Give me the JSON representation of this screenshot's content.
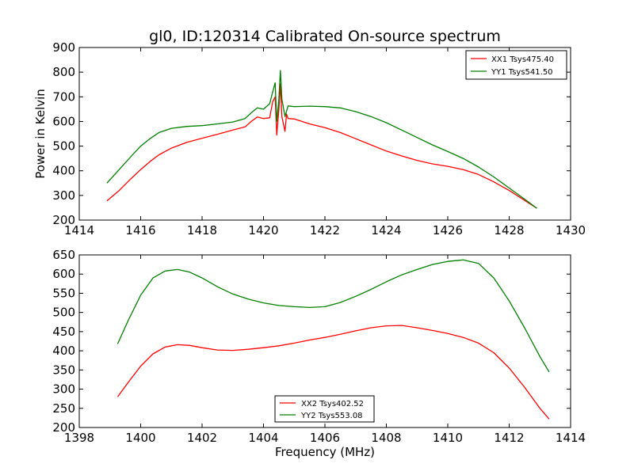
{
  "chart_data": [
    {
      "type": "line",
      "title": "gl0, ID:120314 Calibrated On-source spectrum",
      "xlabel": "",
      "ylabel": "Power in Kelvin",
      "xlim": [
        1414,
        1430
      ],
      "ylim": [
        200,
        900
      ],
      "xticks": [
        "1414",
        "1416",
        "1418",
        "1420",
        "1422",
        "1424",
        "1426",
        "1428",
        "1430"
      ],
      "yticks": [
        "200",
        "300",
        "400",
        "500",
        "600",
        "700",
        "800",
        "900"
      ],
      "legend": "top-right",
      "series": [
        {
          "name": "XX1 Tsys475.40",
          "color": "#ff0000",
          "x": [
            1414.9,
            1415.3,
            1415.7,
            1416.0,
            1416.3,
            1416.6,
            1417.0,
            1417.5,
            1418.0,
            1418.5,
            1419.0,
            1419.4,
            1419.6,
            1419.8,
            1420.0,
            1420.2,
            1420.3,
            1420.38,
            1420.43,
            1420.5,
            1420.55,
            1420.6,
            1420.7,
            1420.75,
            1420.8,
            1421.0,
            1421.5,
            1422.0,
            1422.5,
            1423.0,
            1423.5,
            1424.0,
            1424.5,
            1425.0,
            1425.5,
            1426.0,
            1426.5,
            1427.0,
            1427.5,
            1428.0,
            1428.5,
            1428.9
          ],
          "y": [
            278,
            320,
            370,
            405,
            437,
            465,
            492,
            515,
            532,
            548,
            565,
            578,
            600,
            618,
            612,
            615,
            680,
            700,
            545,
            650,
            752,
            620,
            560,
            630,
            612,
            610,
            590,
            575,
            555,
            530,
            505,
            480,
            460,
            442,
            428,
            418,
            405,
            385,
            355,
            320,
            280,
            248
          ]
        },
        {
          "name": "YY1 Tsys541.50",
          "color": "#008000",
          "x": [
            1414.9,
            1415.3,
            1415.7,
            1416.0,
            1416.3,
            1416.6,
            1417.0,
            1417.5,
            1418.0,
            1418.5,
            1419.0,
            1419.4,
            1419.6,
            1419.8,
            1420.0,
            1420.2,
            1420.3,
            1420.38,
            1420.43,
            1420.5,
            1420.55,
            1420.6,
            1420.7,
            1420.8,
            1421.0,
            1421.5,
            1422.0,
            1422.5,
            1423.0,
            1423.5,
            1424.0,
            1424.5,
            1425.0,
            1425.5,
            1426.0,
            1426.5,
            1427.0,
            1427.5,
            1428.0,
            1428.5,
            1428.9
          ],
          "y": [
            350,
            405,
            460,
            500,
            530,
            555,
            572,
            580,
            583,
            590,
            598,
            612,
            635,
            655,
            650,
            672,
            720,
            757,
            600,
            690,
            807,
            690,
            620,
            663,
            660,
            662,
            660,
            655,
            640,
            620,
            595,
            565,
            535,
            505,
            478,
            450,
            415,
            375,
            330,
            285,
            248
          ]
        }
      ]
    },
    {
      "type": "line",
      "title": "",
      "xlabel": "Frequency (MHz)",
      "ylabel": "",
      "xlim": [
        1398,
        1414
      ],
      "ylim": [
        200,
        650
      ],
      "xticks": [
        "1398",
        "1400",
        "1402",
        "1404",
        "1406",
        "1408",
        "1410",
        "1412",
        "1414"
      ],
      "yticks": [
        "200",
        "250",
        "300",
        "350",
        "400",
        "450",
        "500",
        "550",
        "600",
        "650"
      ],
      "legend": "bottom-center",
      "series": [
        {
          "name": "XX2 Tsys402.52",
          "color": "#ff0000",
          "x": [
            1399.25,
            1399.6,
            1400.0,
            1400.4,
            1400.8,
            1401.2,
            1401.6,
            1402.0,
            1402.5,
            1403.0,
            1403.5,
            1404.0,
            1404.5,
            1405.0,
            1405.5,
            1406.0,
            1406.5,
            1407.0,
            1407.5,
            1408.0,
            1408.5,
            1409.0,
            1409.5,
            1410.0,
            1410.5,
            1411.0,
            1411.5,
            1412.0,
            1412.5,
            1413.0,
            1413.3
          ],
          "y": [
            280,
            318,
            360,
            392,
            410,
            416,
            414,
            408,
            402,
            401,
            404,
            408,
            413,
            420,
            428,
            435,
            443,
            452,
            460,
            465,
            466,
            460,
            453,
            445,
            435,
            420,
            395,
            355,
            305,
            250,
            222
          ]
        },
        {
          "name": "YY2 Tsys553.08",
          "color": "#008000",
          "x": [
            1399.25,
            1399.6,
            1400.0,
            1400.4,
            1400.8,
            1401.2,
            1401.6,
            1402.0,
            1402.5,
            1403.0,
            1403.5,
            1404.0,
            1404.5,
            1405.0,
            1405.5,
            1406.0,
            1406.5,
            1407.0,
            1407.5,
            1408.0,
            1408.5,
            1409.0,
            1409.5,
            1410.0,
            1410.5,
            1411.0,
            1411.5,
            1412.0,
            1412.5,
            1413.0,
            1413.3
          ],
          "y": [
            418,
            480,
            545,
            590,
            608,
            612,
            605,
            590,
            567,
            548,
            535,
            525,
            518,
            515,
            513,
            515,
            526,
            542,
            560,
            580,
            598,
            612,
            625,
            633,
            637,
            628,
            590,
            530,
            460,
            385,
            345
          ]
        }
      ]
    }
  ]
}
